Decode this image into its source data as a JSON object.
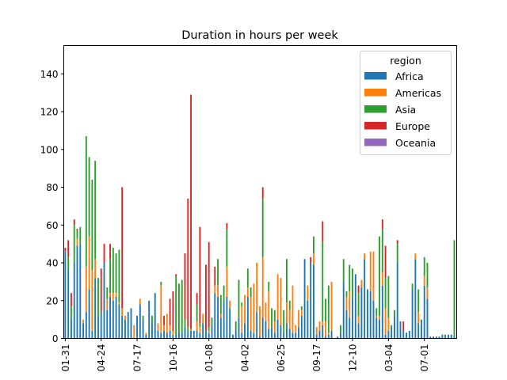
{
  "chart_data": {
    "type": "bar",
    "stacked": true,
    "title": "Duration in hours per week",
    "xlabel": "",
    "ylabel": "",
    "ylim": [
      0,
      155
    ],
    "yticks": [
      0,
      20,
      40,
      60,
      80,
      100,
      120,
      140
    ],
    "xtick_labels": [
      "01-31",
      "04-24",
      "07-17",
      "10-16",
      "01-08",
      "04-02",
      "06-25",
      "09-17",
      "12-10",
      "03-04",
      "07-01"
    ],
    "xtick_every": 12,
    "legend": {
      "title": "region",
      "placement": "top-right"
    },
    "series": [
      {
        "name": "Africa",
        "color": "#1f77b4",
        "values": [
          46,
          36,
          11,
          40,
          49,
          50,
          8,
          14,
          26,
          4,
          32,
          12,
          14,
          40,
          15,
          22,
          20,
          22,
          18,
          12,
          10,
          14,
          16,
          0,
          12,
          18,
          10,
          2,
          20,
          8,
          24,
          4,
          3,
          4,
          3,
          4,
          2,
          2,
          3,
          3,
          6,
          3,
          4,
          4,
          4,
          3,
          8,
          4,
          3,
          7,
          24,
          22,
          11,
          19,
          22,
          16,
          2,
          4,
          11,
          3,
          8,
          22,
          4,
          3,
          14,
          1,
          11,
          9,
          5,
          6,
          3,
          10,
          7,
          3,
          8,
          5,
          3,
          3,
          6,
          12,
          42,
          20,
          40,
          39,
          2,
          4,
          7,
          1,
          2,
          4,
          0,
          1,
          3,
          30,
          15,
          11,
          21,
          34,
          8,
          27,
          42,
          26,
          25,
          20,
          11,
          10,
          28,
          2,
          4,
          6,
          12,
          40,
          9,
          4,
          3,
          4,
          26,
          42,
          8,
          10,
          28,
          21,
          1,
          1,
          1,
          1,
          2,
          2,
          2,
          2,
          1
        ]
      },
      {
        "name": "Americas",
        "color": "#ff7f0e",
        "values": [
          0,
          0,
          0,
          0,
          4,
          0,
          2,
          24,
          28,
          32,
          10,
          0,
          0,
          0,
          6,
          2,
          4,
          2,
          1,
          4,
          2,
          0,
          0,
          7,
          0,
          3,
          0,
          1,
          0,
          0,
          0,
          4,
          25,
          3,
          10,
          3,
          2,
          0,
          0,
          0,
          0,
          0,
          1,
          0,
          5,
          3,
          5,
          0,
          1,
          0,
          4,
          6,
          2,
          0,
          16,
          4,
          0,
          0,
          0,
          14,
          15,
          5,
          18,
          26,
          26,
          16,
          32,
          10,
          20,
          0,
          6,
          24,
          25,
          0,
          11,
          10,
          25,
          4,
          9,
          3,
          0,
          8,
          0,
          6,
          4,
          5,
          2,
          8,
          1,
          26,
          0,
          0,
          0,
          0,
          7,
          14,
          0,
          0,
          4,
          4,
          3,
          0,
          21,
          26,
          1,
          2,
          7,
          14,
          7,
          0,
          0,
          0,
          0,
          0,
          0,
          0,
          0,
          3,
          6,
          0,
          5,
          6,
          0,
          0,
          0,
          0,
          0,
          0,
          0,
          0,
          0
        ]
      },
      {
        "name": "Asia",
        "color": "#2ca02c",
        "values": [
          0,
          7,
          6,
          20,
          4,
          9,
          0,
          69,
          42,
          48,
          52,
          20,
          0,
          0,
          6,
          18,
          24,
          21,
          28,
          0,
          0,
          0,
          0,
          0,
          0,
          0,
          2,
          0,
          0,
          4,
          0,
          0,
          2,
          0,
          0,
          0,
          0,
          31,
          26,
          28,
          4,
          3,
          0,
          0,
          9,
          2,
          0,
          0,
          2,
          4,
          0,
          14,
          10,
          9,
          20,
          0,
          0,
          5,
          20,
          2,
          0,
          10,
          5,
          0,
          0,
          0,
          31,
          0,
          5,
          10,
          6,
          0,
          0,
          12,
          23,
          5,
          0,
          0,
          0,
          2,
          0,
          0,
          0,
          9,
          0,
          0,
          42,
          12,
          25,
          0,
          0,
          0,
          4,
          12,
          3,
          14,
          16,
          0,
          12,
          0,
          0,
          0,
          0,
          0,
          4,
          42,
          23,
          16,
          22,
          1,
          3,
          10,
          0,
          0,
          0,
          0,
          3,
          0,
          12,
          0,
          10,
          13,
          0,
          0,
          0,
          0,
          0,
          0,
          0,
          0,
          51
        ]
      },
      {
        "name": "Europe",
        "color": "#d62728",
        "values": [
          2,
          9,
          7,
          3,
          1,
          0,
          0,
          0,
          0,
          0,
          0,
          0,
          23,
          10,
          0,
          8,
          0,
          0,
          0,
          64,
          0,
          0,
          0,
          0,
          0,
          0,
          0,
          0,
          0,
          0,
          0,
          0,
          0,
          5,
          0,
          14,
          21,
          1,
          0,
          0,
          35,
          68,
          124,
          0,
          6,
          51,
          0,
          35,
          45,
          0,
          10,
          0,
          0,
          0,
          3,
          0,
          0,
          0,
          0,
          0,
          0,
          0,
          0,
          0,
          0,
          0,
          6,
          0,
          0,
          0,
          0,
          0,
          0,
          0,
          0,
          0,
          0,
          0,
          0,
          0,
          0,
          0,
          3,
          0,
          0,
          0,
          11,
          0,
          0,
          0,
          0,
          0,
          0,
          0,
          0,
          0,
          0,
          0,
          4,
          0,
          0,
          0,
          0,
          0,
          0,
          0,
          5,
          17,
          0,
          0,
          0,
          2,
          0,
          5,
          0,
          0,
          0,
          0,
          0,
          0,
          0,
          0,
          0,
          0,
          0,
          0,
          0,
          0,
          0,
          0,
          0
        ]
      },
      {
        "name": "Oceania",
        "color": "#9467bd",
        "values": [
          0,
          0,
          0,
          0,
          0,
          0,
          0,
          0,
          0,
          0,
          0,
          0,
          0,
          0,
          0,
          0,
          0,
          0,
          0,
          0,
          0,
          0,
          0,
          0,
          0,
          0,
          0,
          0,
          0,
          0,
          0,
          0,
          0,
          0,
          0,
          0,
          0,
          0,
          0,
          0,
          0,
          0,
          0,
          0,
          0,
          0,
          0,
          0,
          0,
          0,
          0,
          0,
          0,
          0,
          0,
          0,
          0,
          0,
          0,
          0,
          0,
          0,
          0,
          0,
          0,
          0,
          0,
          0,
          0,
          0,
          0,
          0,
          0,
          0,
          0,
          0,
          0,
          0,
          0,
          0,
          0,
          0,
          0,
          0,
          0,
          0,
          0,
          0,
          0,
          0,
          0,
          0,
          0,
          0,
          0,
          0,
          0,
          0,
          0,
          0,
          0,
          0,
          0,
          0,
          0,
          0,
          0,
          0,
          0,
          0,
          0,
          0,
          0,
          0,
          0,
          0,
          0,
          0,
          0,
          0,
          0,
          0,
          0,
          0,
          0,
          0,
          0,
          0,
          0,
          0,
          0
        ]
      }
    ]
  }
}
